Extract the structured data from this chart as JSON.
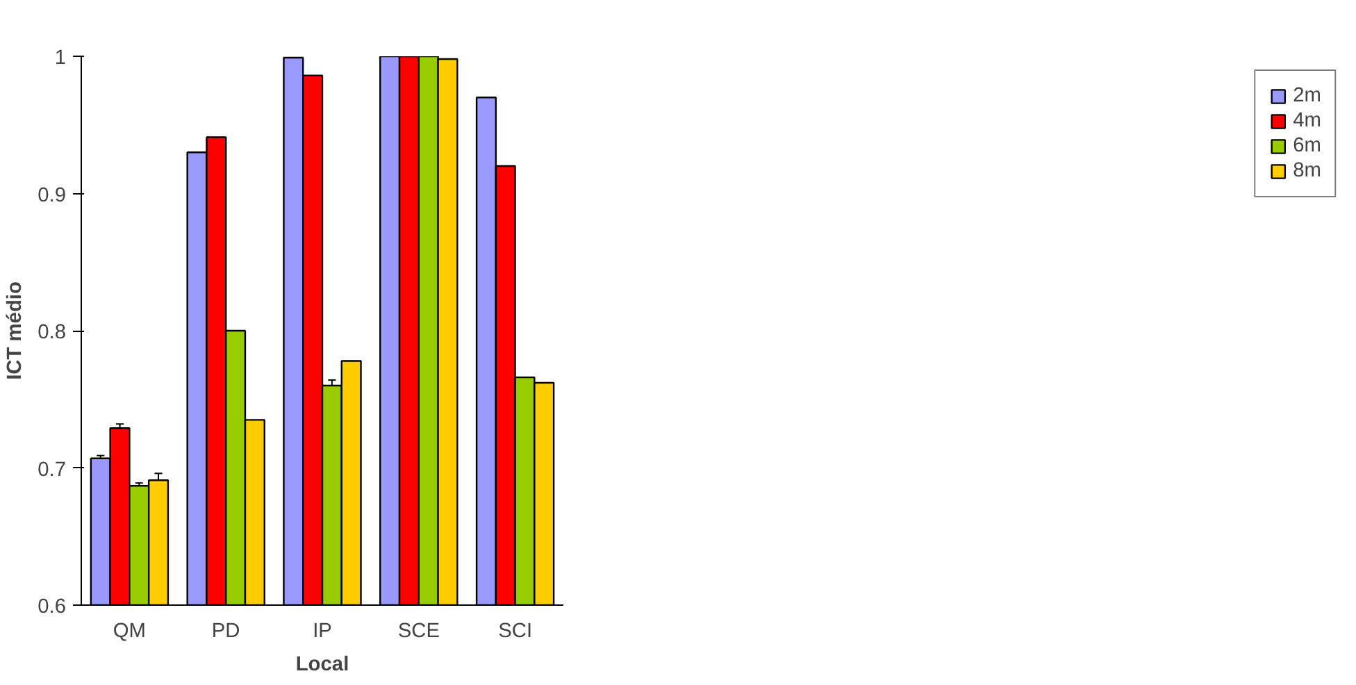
{
  "chart_data": {
    "type": "bar",
    "xlabel": "Local",
    "ylabel": "ICT médio",
    "categories": [
      "QM",
      "PD",
      "IP",
      "SCE",
      "SCI"
    ],
    "series": [
      {
        "name": "2m",
        "color": "#9999ff",
        "values": [
          0.707,
          0.93,
          0.999,
          1.0,
          0.97
        ],
        "errors": [
          0.002,
          null,
          null,
          null,
          null
        ]
      },
      {
        "name": "4m",
        "color": "#ff0000",
        "values": [
          0.729,
          0.941,
          0.986,
          1.0,
          0.92
        ],
        "errors": [
          0.003,
          null,
          null,
          null,
          null
        ]
      },
      {
        "name": "6m",
        "color": "#99cc00",
        "values": [
          0.687,
          0.8,
          0.76,
          1.0,
          0.766
        ],
        "errors": [
          0.002,
          null,
          0.004,
          null,
          null
        ]
      },
      {
        "name": "8m",
        "color": "#ffcc00",
        "values": [
          0.691,
          0.735,
          0.778,
          0.998,
          0.762
        ],
        "errors": [
          0.005,
          null,
          null,
          null,
          null
        ]
      }
    ],
    "ylim": [
      0.6,
      1.0
    ],
    "yticks": [
      {
        "value": 0.6,
        "label": "0.6"
      },
      {
        "value": 0.7,
        "label": "0.7"
      },
      {
        "value": 0.8,
        "label": "0.8"
      },
      {
        "value": 0.9,
        "label": "0.9"
      },
      {
        "value": 1.0,
        "label": "1"
      }
    ],
    "grid": false,
    "legend": "right"
  }
}
